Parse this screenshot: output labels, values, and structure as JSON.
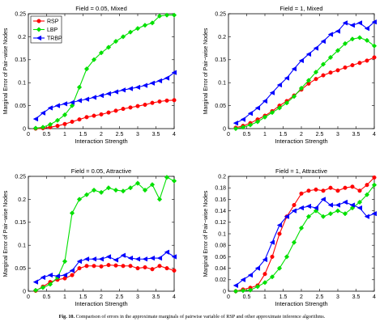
{
  "caption": {
    "label": "Fig. 10.",
    "text": "Comparison of errors in the approximate marginals of pairwise variable of RSP and other approximate inference algorithms."
  },
  "colors": {
    "RSP": "#ff0000",
    "LBP": "#00e000",
    "TRBP": "#0000ff"
  },
  "legend": {
    "entries": [
      "RSP",
      "LBP",
      "TRBP"
    ],
    "markers": [
      "circle",
      "diamond",
      "triangle-left"
    ],
    "placement": "top-left"
  },
  "chart_data": [
    {
      "type": "line",
      "title": "Field = 0.05, Mixed",
      "xlabel": "Interaction Strength",
      "ylabel": "Marginal Error of Pair−wise Nodes",
      "xlim": [
        0,
        4
      ],
      "ylim": [
        0,
        0.25
      ],
      "xticks": [
        "0",
        "0.5",
        "1",
        "1.5",
        "2",
        "2.5",
        "3",
        "3.5",
        "4"
      ],
      "yticks": [
        "0",
        "0.05",
        "0.1",
        "0.15",
        "0.2",
        "0.25"
      ],
      "x": [
        0.2,
        0.4,
        0.6,
        0.8,
        1.0,
        1.2,
        1.4,
        1.6,
        1.8,
        2.0,
        2.2,
        2.4,
        2.6,
        2.8,
        3.0,
        3.2,
        3.4,
        3.6,
        3.8,
        4.0
      ],
      "series": [
        {
          "name": "RSP",
          "values": [
            0.0,
            0.001,
            0.003,
            0.006,
            0.01,
            0.015,
            0.02,
            0.025,
            0.028,
            0.031,
            0.035,
            0.039,
            0.043,
            0.046,
            0.049,
            0.052,
            0.056,
            0.059,
            0.061,
            0.062
          ]
        },
        {
          "name": "LBP",
          "values": [
            0.001,
            0.003,
            0.009,
            0.018,
            0.03,
            0.05,
            0.09,
            0.13,
            0.15,
            0.165,
            0.177,
            0.19,
            0.2,
            0.21,
            0.218,
            0.225,
            0.23,
            0.245,
            0.247,
            0.247
          ]
        },
        {
          "name": "TRBP",
          "values": [
            0.021,
            0.034,
            0.045,
            0.05,
            0.054,
            0.057,
            0.061,
            0.064,
            0.068,
            0.072,
            0.076,
            0.08,
            0.084,
            0.087,
            0.09,
            0.094,
            0.099,
            0.104,
            0.11,
            0.122
          ]
        }
      ]
    },
    {
      "type": "line",
      "title": "Field = 1, Mixed",
      "xlabel": "Interaction Strength",
      "ylabel": "Marginal Error of Pair−wise Nodes",
      "xlim": [
        0,
        4
      ],
      "ylim": [
        0,
        0.25
      ],
      "xticks": [
        "0",
        "0.5",
        "1",
        "1.5",
        "2",
        "2.5",
        "3",
        "3.5",
        "4"
      ],
      "yticks": [
        "0",
        "0.05",
        "0.1",
        "0.15",
        "0.2",
        "0.25"
      ],
      "x": [
        0.2,
        0.4,
        0.6,
        0.8,
        1.0,
        1.2,
        1.4,
        1.6,
        1.8,
        2.0,
        2.2,
        2.4,
        2.6,
        2.8,
        3.0,
        3.2,
        3.4,
        3.6,
        3.8,
        4.0
      ],
      "series": [
        {
          "name": "RSP",
          "values": [
            0.002,
            0.006,
            0.012,
            0.02,
            0.028,
            0.038,
            0.05,
            0.06,
            0.072,
            0.085,
            0.098,
            0.108,
            0.116,
            0.122,
            0.127,
            0.133,
            0.138,
            0.143,
            0.148,
            0.155
          ]
        },
        {
          "name": "LBP",
          "values": [
            0.0,
            0.003,
            0.008,
            0.015,
            0.025,
            0.035,
            0.045,
            0.056,
            0.07,
            0.088,
            0.105,
            0.123,
            0.14,
            0.155,
            0.17,
            0.185,
            0.195,
            0.198,
            0.192,
            0.18
          ]
        },
        {
          "name": "TRBP",
          "values": [
            0.012,
            0.02,
            0.033,
            0.045,
            0.06,
            0.078,
            0.095,
            0.11,
            0.13,
            0.148,
            0.162,
            0.175,
            0.19,
            0.205,
            0.212,
            0.23,
            0.225,
            0.23,
            0.218,
            0.232
          ]
        }
      ]
    },
    {
      "type": "line",
      "title": "Field = 0.05, Attractive",
      "xlabel": "Interaction Strength",
      "ylabel": "Marginal Error of Pair−wise Nodes",
      "xlim": [
        0,
        4
      ],
      "ylim": [
        0,
        0.25
      ],
      "xticks": [
        "0",
        "0.5",
        "1",
        "1.5",
        "2",
        "2.5",
        "3",
        "3.5",
        "4"
      ],
      "yticks": [
        "0",
        "0.05",
        "0.1",
        "0.15",
        "0.2",
        "0.25"
      ],
      "x": [
        0.2,
        0.4,
        0.6,
        0.8,
        1.0,
        1.2,
        1.4,
        1.6,
        1.8,
        2.0,
        2.2,
        2.4,
        2.6,
        2.8,
        3.0,
        3.2,
        3.4,
        3.6,
        3.8,
        4.0
      ],
      "series": [
        {
          "name": "RSP",
          "values": [
            0.001,
            0.01,
            0.02,
            0.025,
            0.028,
            0.035,
            0.05,
            0.055,
            0.055,
            0.054,
            0.057,
            0.056,
            0.055,
            0.055,
            0.05,
            0.052,
            0.048,
            0.055,
            0.05,
            0.045
          ]
        },
        {
          "name": "LBP",
          "values": [
            0.002,
            0.008,
            0.015,
            0.03,
            0.065,
            0.17,
            0.2,
            0.21,
            0.22,
            0.215,
            0.225,
            0.22,
            0.218,
            0.225,
            0.235,
            0.22,
            0.232,
            0.2,
            0.248,
            0.24
          ]
        },
        {
          "name": "TRBP",
          "values": [
            0.02,
            0.03,
            0.035,
            0.033,
            0.035,
            0.045,
            0.065,
            0.07,
            0.07,
            0.07,
            0.075,
            0.068,
            0.078,
            0.072,
            0.07,
            0.07,
            0.072,
            0.072,
            0.085,
            0.075
          ]
        }
      ]
    },
    {
      "type": "line",
      "title": "Field = 1, Attractive",
      "xlabel": "Interaction Strength",
      "ylabel": "Marginal Error of Pair−wise Nodes",
      "xlim": [
        0,
        4
      ],
      "ylim": [
        0,
        0.2
      ],
      "xticks": [
        "0",
        "0.5",
        "1",
        "1.5",
        "2",
        "2.5",
        "3",
        "3.5",
        "4"
      ],
      "yticks": [
        "0",
        "0.02",
        "0.04",
        "0.06",
        "0.08",
        "0.1",
        "0.12",
        "0.14",
        "0.16",
        "0.18",
        "0.2"
      ],
      "x": [
        0.2,
        0.4,
        0.6,
        0.8,
        1.0,
        1.2,
        1.4,
        1.6,
        1.8,
        2.0,
        2.2,
        2.4,
        2.6,
        2.8,
        3.0,
        3.2,
        3.4,
        3.6,
        3.8,
        4.0
      ],
      "series": [
        {
          "name": "RSP",
          "values": [
            0.0,
            0.003,
            0.006,
            0.01,
            0.03,
            0.06,
            0.1,
            0.13,
            0.15,
            0.17,
            0.175,
            0.177,
            0.175,
            0.18,
            0.175,
            0.18,
            0.182,
            0.175,
            0.185,
            0.198
          ]
        },
        {
          "name": "LBP",
          "values": [
            0.0,
            0.001,
            0.002,
            0.008,
            0.015,
            0.025,
            0.04,
            0.06,
            0.085,
            0.11,
            0.13,
            0.14,
            0.13,
            0.135,
            0.14,
            0.135,
            0.145,
            0.155,
            0.168,
            0.185
          ]
        },
        {
          "name": "TRBP",
          "values": [
            0.01,
            0.02,
            0.028,
            0.04,
            0.055,
            0.085,
            0.115,
            0.13,
            0.14,
            0.145,
            0.148,
            0.145,
            0.16,
            0.15,
            0.15,
            0.155,
            0.15,
            0.145,
            0.13,
            0.135
          ]
        }
      ]
    }
  ]
}
